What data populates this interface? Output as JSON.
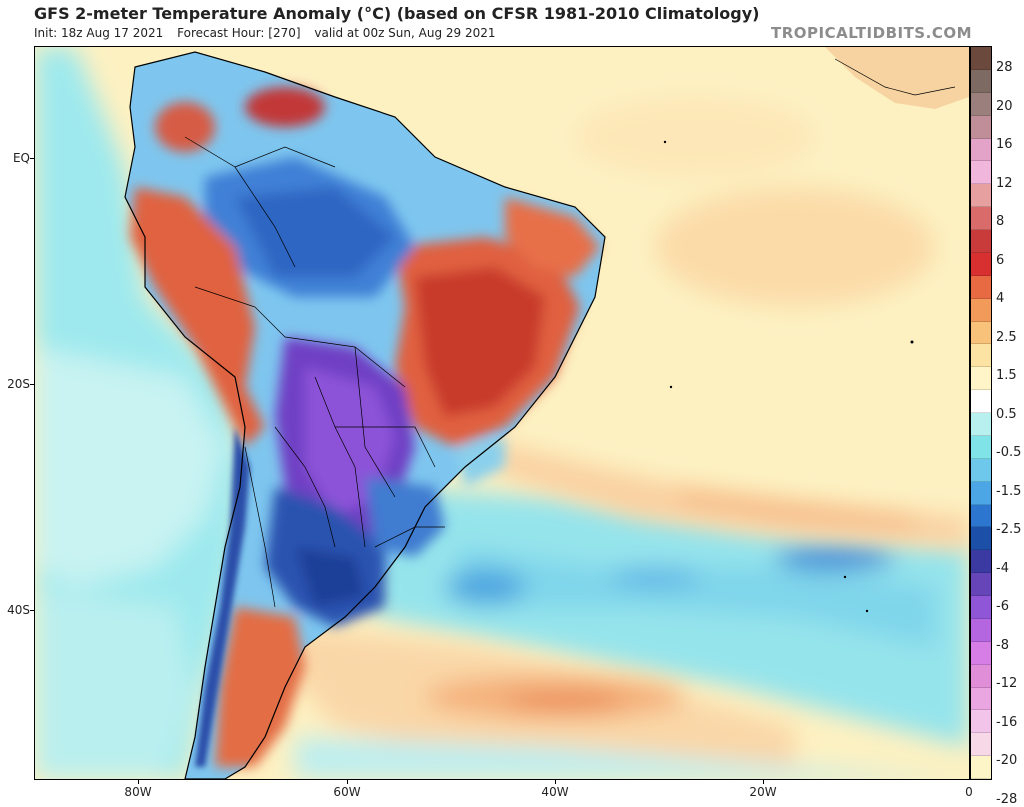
{
  "header": {
    "title": "GFS 2-meter Temperature Anomaly (°C) (based on CFSR 1981-2010 Climatology)",
    "init": "Init: 18z Aug 17 2021",
    "forecast_hour": "Forecast Hour: [270]",
    "valid": "valid at 00z Sun, Aug 29 2021",
    "brand": "TROPICALTIDBITS.COM"
  },
  "map": {
    "lat_labels": [
      "EQ",
      "20S",
      "40S"
    ],
    "lon_labels": [
      "80W",
      "60W",
      "40W",
      "20W",
      "0"
    ]
  },
  "colorbar": {
    "labels": [
      "28",
      "20",
      "16",
      "12",
      "8",
      "6",
      "4",
      "2.5",
      "1.5",
      "0.5",
      "-0.5",
      "-1.5",
      "-2.5",
      "-4",
      "-6",
      "-8",
      "-12",
      "-16",
      "-20",
      "-28"
    ],
    "colors": [
      "#6b4a3d",
      "#7d6a62",
      "#9a7f7d",
      "#bf8e98",
      "#e3a3c9",
      "#f0b6dc",
      "#e6a0a0",
      "#d96b6b",
      "#c93a3a",
      "#d83030",
      "#e86a42",
      "#f19a5a",
      "#f8c27a",
      "#fde3a3",
      "#fff5c8",
      "#ffffff",
      "#b8f0f0",
      "#7fe3e8",
      "#6dc8ec",
      "#4ca6e6",
      "#2c76cf",
      "#1c4fa8",
      "#3b3aa3",
      "#6645b9",
      "#8f56d8",
      "#b466e0",
      "#d67de6",
      "#e08ed8",
      "#eaa6e0",
      "#f2c4ea",
      "#f6d8e6",
      "#fdf4c8"
    ]
  }
}
